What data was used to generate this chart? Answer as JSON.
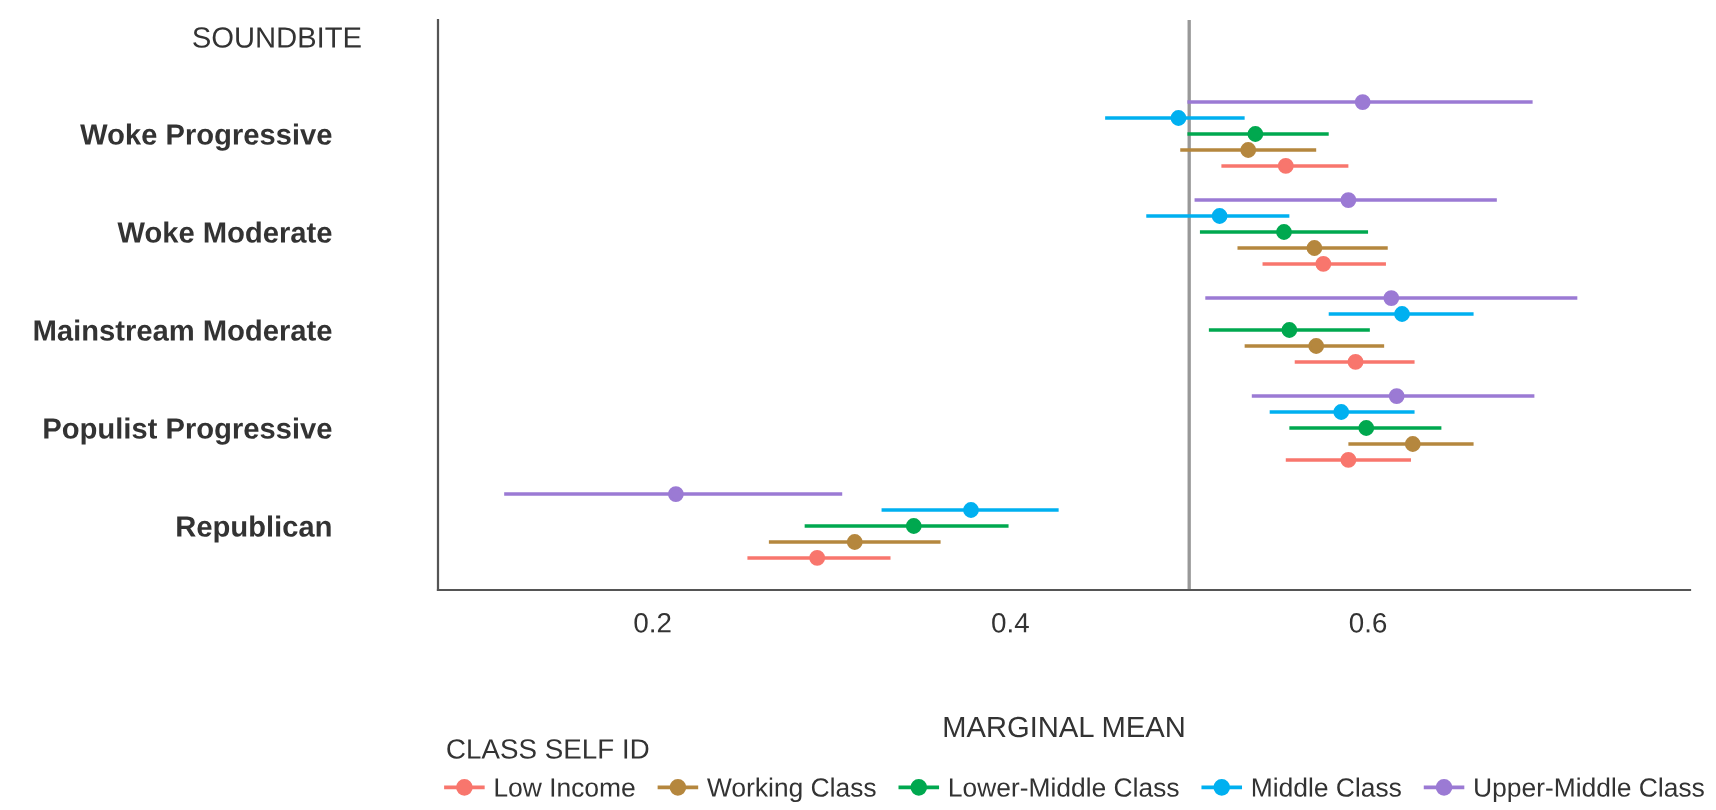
{
  "chart_data": {
    "type": "scatter",
    "orientation": "horizontal",
    "ylabel": "SOUNDBITE",
    "xlabel": "MARGINAL MEAN",
    "legend_title": "CLASS SELF ID",
    "legend": "bottom",
    "grid": false,
    "marker": "circle",
    "categories": [
      "Woke Progressive",
      "Woke Moderate",
      "Mainstream Moderate",
      "Populist Progressive",
      "Republican"
    ],
    "xlim": [
      0.08,
      0.78
    ],
    "xticks": [
      0.2,
      0.4,
      0.6
    ],
    "ref_lines": [
      {
        "axis": "x",
        "value": 0.5,
        "color": "#999999"
      }
    ],
    "series": [
      {
        "name": "Low Income",
        "color": "#f8766d",
        "values": [
          0.554,
          0.575,
          0.593,
          0.589,
          0.292
        ],
        "errors": [
          [
            0.518,
            0.589
          ],
          [
            0.541,
            0.61
          ],
          [
            0.559,
            0.626
          ],
          [
            0.554,
            0.624
          ],
          [
            0.253,
            0.333
          ]
        ]
      },
      {
        "name": "Working Class",
        "color": "#b5873e",
        "values": [
          0.533,
          0.57,
          0.571,
          0.625,
          0.313
        ],
        "errors": [
          [
            0.495,
            0.571
          ],
          [
            0.527,
            0.611
          ],
          [
            0.531,
            0.609
          ],
          [
            0.589,
            0.659
          ],
          [
            0.265,
            0.361
          ]
        ]
      },
      {
        "name": "Lower-Middle Class",
        "color": "#00a84f",
        "values": [
          0.537,
          0.553,
          0.556,
          0.599,
          0.346
        ],
        "errors": [
          [
            0.499,
            0.578
          ],
          [
            0.506,
            0.6
          ],
          [
            0.511,
            0.601
          ],
          [
            0.556,
            0.641
          ],
          [
            0.285,
            0.399
          ]
        ]
      },
      {
        "name": "Middle Class",
        "color": "#00b0f0",
        "values": [
          0.494,
          0.517,
          0.619,
          0.585,
          0.378
        ],
        "errors": [
          [
            0.453,
            0.531
          ],
          [
            0.476,
            0.556
          ],
          [
            0.578,
            0.659
          ],
          [
            0.545,
            0.626
          ],
          [
            0.328,
            0.427
          ]
        ]
      },
      {
        "name": "Upper-Middle Class",
        "color": "#9b7ad4",
        "values": [
          0.597,
          0.589,
          0.613,
          0.616,
          0.213
        ],
        "errors": [
          [
            0.499,
            0.692
          ],
          [
            0.503,
            0.672
          ],
          [
            0.509,
            0.717
          ],
          [
            0.535,
            0.693
          ],
          [
            0.117,
            0.306
          ]
        ]
      }
    ]
  }
}
